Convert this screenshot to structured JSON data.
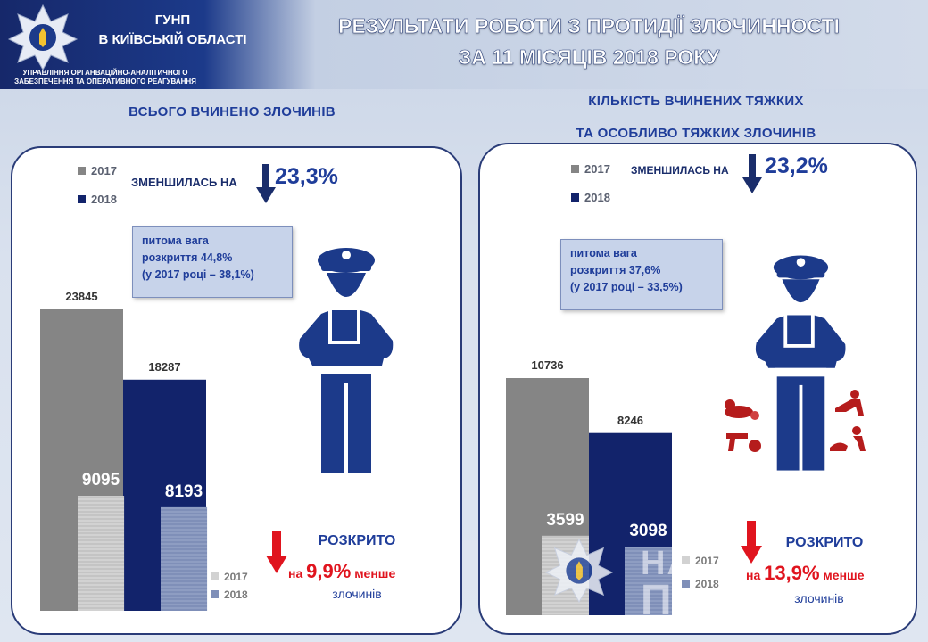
{
  "header": {
    "org_line1": "ГУНП",
    "org_line2": "В КИЇВСЬКІЙ ОБЛАСТІ",
    "dept_line1": "УПРАВЛІННЯ ОРГАНВАЦІЙНО-АНАЛІТИЧНОГО",
    "dept_line2": "ЗАБЕЗПЕЧЕННЯ ТА ОПЕРАТИВНОГО РЕАГУВАННЯ",
    "title_line1": "РЕЗУЛЬТАТИ РОБОТИ З ПРОТИДІЇ ЗЛОЧИННОСТІ",
    "title_line2": "ЗА 11 МІСЯЦІВ 2018 РОКУ"
  },
  "colors": {
    "bar_2017": "#858585",
    "bar_2018": "#12236b",
    "solved_2017": "#d2d2d2",
    "solved_2018": "#7f8fb8",
    "accent_red": "#e0141e",
    "header_blue": "#1c3a8a"
  },
  "left_panel": {
    "title": "ВСЬОГО  ВЧИНЕНО ЗЛОЧИНІВ",
    "legend": [
      "2017",
      "2018"
    ],
    "decrease_label": "ЗМЕНШИЛАСЬ НА",
    "decrease_value": "23,3%",
    "info_line1": "питома вага",
    "info_line2": "розкриття 44,8%",
    "info_line3": "(у 2017 році – 38,1%)",
    "solved_legend": [
      "2017",
      "2018"
    ],
    "solved_title": "РОЗКРИТО",
    "solved_prefix": "на",
    "solved_value": "9,9%",
    "solved_suffix": "менше",
    "solved_sub": "злочинів",
    "icon": "police-officer-icon"
  },
  "right_panel": {
    "title_line1": "КІЛЬКІСТЬ ВЧИНЕНИХ ТЯЖКИХ",
    "title_line2": "ТА ОСОБЛИВО ТЯЖКИХ ЗЛОЧИНІВ",
    "legend": [
      "2017",
      "2018"
    ],
    "decrease_label": "ЗМЕНШИЛАСЬ НА",
    "decrease_value": "23,2%",
    "info_line1": "питома вага",
    "info_line2": "розкриття 37,6%",
    "info_line3": "(у 2017 році – 33,5%)",
    "solved_legend": [
      "2017",
      "2018"
    ],
    "solved_title": "РОЗКРИТО",
    "solved_prefix": "на",
    "solved_value": "13,9%",
    "solved_suffix": "менше",
    "solved_sub": "злочинів",
    "icon": "police-officer-icon",
    "crime_icons": [
      "murder-icon",
      "assault-icon",
      "weapons-icon",
      "robbery-icon"
    ],
    "watermark_line1": "НАЦІОНАЛЬНА",
    "watermark_line2": "ПОЛІЦІЯ"
  },
  "chart_data": [
    {
      "type": "bar",
      "categories": [
        "2017",
        "2018"
      ],
      "series": [
        {
          "name": "",
          "values": [
            23845,
            18287
          ]
        },
        {
          "name": "РОЗКРИТО",
          "values": [
            9095,
            8193
          ]
        }
      ]
    },
    {
      "type": "bar",
      "categories": [
        "2017",
        "2018"
      ],
      "series": [
        {
          "name": "",
          "values": [
            10736,
            8246
          ]
        },
        {
          "name": "РОЗКРИТО",
          "values": [
            3599,
            3098
          ]
        }
      ]
    }
  ]
}
